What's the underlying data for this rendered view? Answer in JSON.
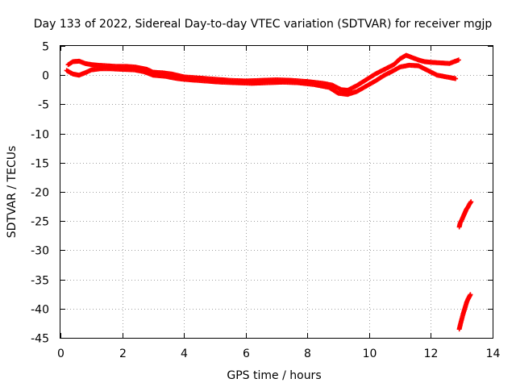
{
  "chart_data": {
    "type": "scatter",
    "title": "Day 133 of 2022, Sidereal Day-to-day VTEC variation (SDTVAR) for receiver mgjp",
    "xlabel": "GPS time / hours",
    "ylabel": "SDTVAR / TECUs",
    "xlim": [
      0,
      14
    ],
    "ylim": [
      -45,
      5
    ],
    "xticks": [
      0,
      2,
      4,
      6,
      8,
      10,
      12,
      14
    ],
    "yticks": [
      5,
      0,
      -5,
      -10,
      -15,
      -20,
      -25,
      -30,
      -35,
      -40,
      -45
    ],
    "grid": true,
    "marker": "+",
    "series_color": "#ff0000",
    "series": [
      {
        "name": "main-track-upper",
        "x": [
          0.25,
          0.4,
          0.6,
          0.8,
          1.0,
          1.2,
          1.5,
          1.8,
          2.1,
          2.4,
          2.6,
          2.8,
          3.0,
          3.3,
          3.6,
          4.0,
          4.5,
          5.0,
          5.5,
          6.0,
          6.5,
          7.0,
          7.5,
          8.0,
          8.5,
          8.8,
          9.1,
          9.3,
          9.6,
          9.9,
          10.2,
          10.5,
          10.8,
          11.0,
          11.2,
          11.4,
          11.6,
          11.8,
          12.0,
          12.3,
          12.6,
          12.9
        ],
        "y": [
          1.8,
          2.3,
          2.4,
          2.0,
          1.8,
          1.7,
          1.6,
          1.5,
          1.5,
          1.4,
          1.2,
          1.0,
          0.5,
          0.4,
          0.2,
          -0.3,
          -0.5,
          -0.7,
          -0.9,
          -1.0,
          -0.9,
          -0.8,
          -0.9,
          -1.1,
          -1.4,
          -1.7,
          -2.5,
          -2.6,
          -1.8,
          -0.8,
          0.2,
          1.0,
          1.8,
          2.8,
          3.4,
          3.0,
          2.6,
          2.3,
          2.2,
          2.1,
          2.0,
          2.6
        ]
      },
      {
        "name": "main-track-lower",
        "x": [
          0.2,
          0.4,
          0.6,
          0.8,
          1.0,
          1.3,
          1.6,
          2.0,
          2.4,
          2.7,
          3.0,
          3.4,
          3.8,
          4.2,
          4.7,
          5.2,
          5.7,
          6.2,
          6.7,
          7.2,
          7.7,
          8.2,
          8.7,
          9.0,
          9.3,
          9.6,
          9.9,
          10.2,
          10.5,
          10.8,
          11.0,
          11.3,
          11.6,
          11.9,
          12.2,
          12.5,
          12.8
        ],
        "y": [
          0.8,
          0.2,
          0.0,
          0.4,
          0.9,
          1.1,
          1.1,
          1.0,
          0.9,
          0.6,
          0.0,
          -0.2,
          -0.6,
          -0.8,
          -1.0,
          -1.2,
          -1.3,
          -1.4,
          -1.3,
          -1.2,
          -1.3,
          -1.6,
          -2.1,
          -3.1,
          -3.3,
          -2.8,
          -1.9,
          -1.0,
          0.0,
          0.8,
          1.4,
          1.7,
          1.6,
          0.8,
          0.0,
          -0.3,
          -0.6
        ]
      },
      {
        "name": "segment-mid",
        "x": [
          12.92,
          12.95,
          13.0,
          13.05,
          13.1,
          13.15,
          13.2,
          13.25,
          13.3
        ],
        "y": [
          -26.0,
          -25.3,
          -24.8,
          -24.2,
          -23.6,
          -23.0,
          -22.6,
          -22.1,
          -21.7
        ]
      },
      {
        "name": "segment-low",
        "x": [
          12.92,
          12.96,
          13.0,
          13.04,
          13.08,
          13.12,
          13.16,
          13.2,
          13.24,
          13.28
        ],
        "y": [
          -43.5,
          -42.6,
          -41.8,
          -41.0,
          -40.3,
          -39.6,
          -38.9,
          -38.4,
          -38.0,
          -37.6
        ]
      }
    ]
  }
}
